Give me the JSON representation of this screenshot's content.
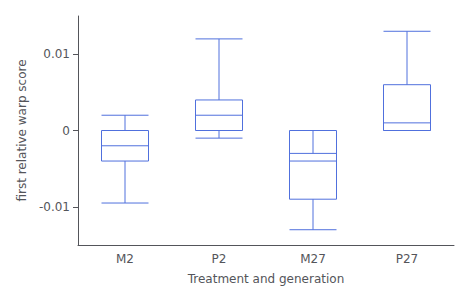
{
  "chart_data": {
    "type": "boxplot",
    "xlabel": "Treatment and generation",
    "ylabel": "first relative warp score",
    "categories": [
      "M2",
      "P2",
      "M27",
      "P27"
    ],
    "values": [
      {
        "whisker_low": -0.0095,
        "q1": -0.004,
        "median": -0.002,
        "q3": 0.0,
        "whisker_high": 0.002
      },
      {
        "whisker_low": -0.001,
        "q1": 0.0,
        "median": 0.002,
        "q3": 0.004,
        "whisker_high": 0.012
      },
      {
        "whisker_low": -0.013,
        "q1": -0.009,
        "median": -0.004,
        "q3": 0.0,
        "whisker_high": -0.003
      },
      {
        "whisker_low": 0.0,
        "q1": 0.0,
        "median": 0.001,
        "q3": 0.006,
        "whisker_high": 0.013
      }
    ],
    "ylim": [
      -0.015,
      0.015
    ],
    "yticks": [
      -0.01,
      0,
      0.01
    ],
    "grid": false
  }
}
